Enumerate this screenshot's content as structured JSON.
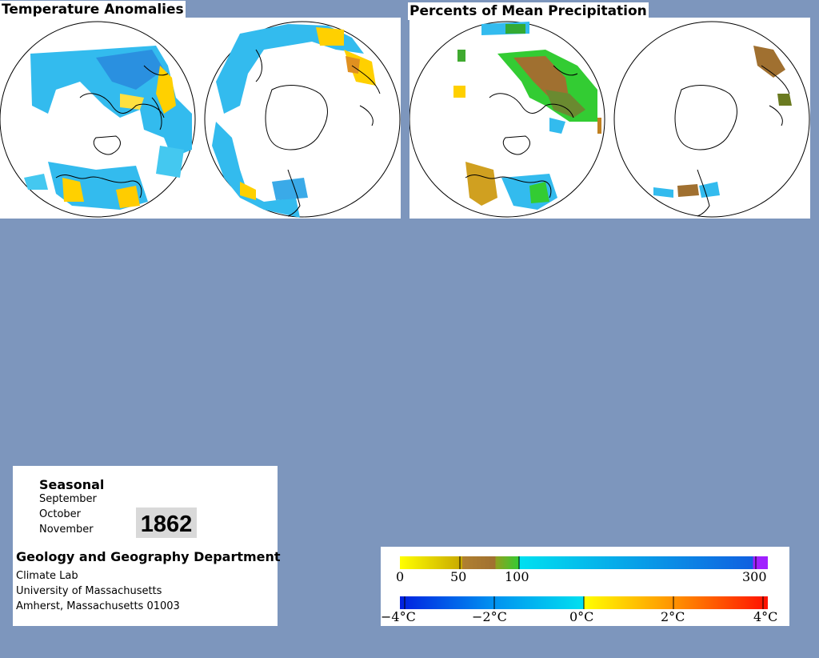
{
  "panels": {
    "temperature": {
      "title": "Temperature Anomalies"
    },
    "precipitation": {
      "title": "Percents of Mean Precipitation"
    }
  },
  "info": {
    "season": "Seasonal",
    "months": [
      "September",
      "October",
      "November"
    ],
    "year": "1862",
    "department": "Geology and Geography Department",
    "address": [
      "Climate Lab",
      "University of Massachusetts",
      "Amherst, Massachusetts 01003"
    ]
  },
  "legend": {
    "precip_ticks": [
      "0",
      "50",
      "100",
      "300"
    ],
    "temp_ticks": [
      "−4°C",
      "−2°C",
      "0°C",
      "2°C",
      "4°C"
    ]
  },
  "colors": {
    "background": "#7d96bd",
    "cold": "#00aaff",
    "warm": "#ffd000",
    "dry": "#a07010",
    "wet": "#33cc33"
  }
}
